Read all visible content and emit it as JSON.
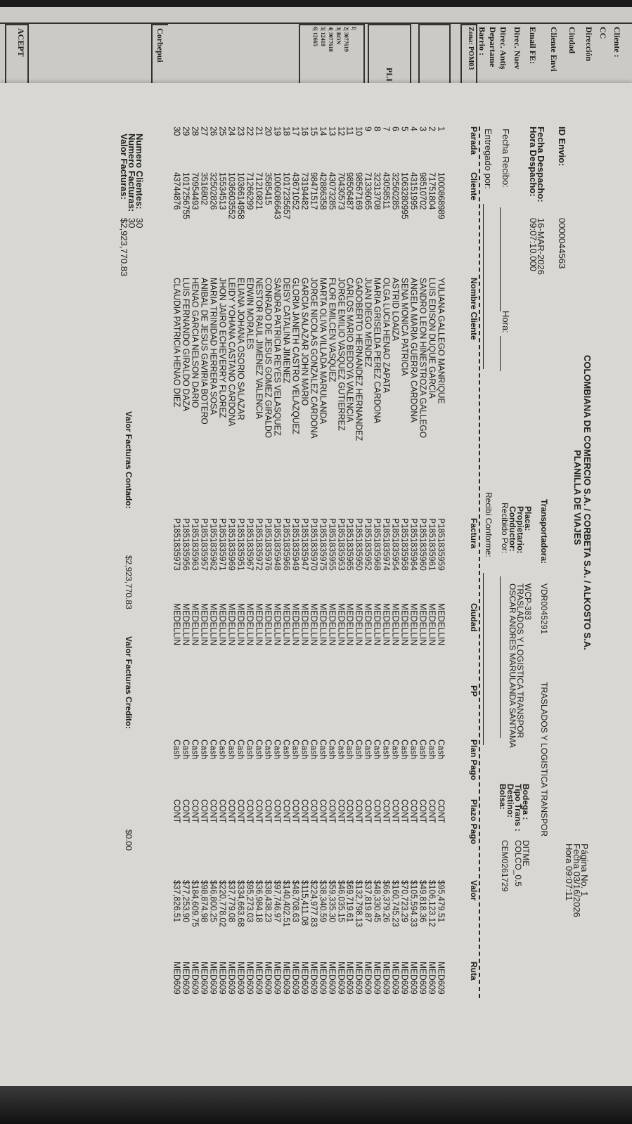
{
  "under_sheet": {
    "labels": [
      "Cliente :",
      "CC",
      "Dirección",
      "Ciudad",
      "Cliente Envi",
      "Email FE:",
      "Direc. Nuev",
      "Direc. Antiş",
      "Departame",
      "Barrio :",
      "Zona: POM03"
    ],
    "box_label": "PLI",
    "list": [
      "I|",
      "2| 3077619",
      "3| BON",
      "4| 3077618",
      "5| 12418",
      "6| 12665"
    ],
    "footer_label": "Corbepui",
    "accept_label": "ACEPT"
  },
  "header": {
    "title": "COLOMBIANA DE COMERCIO S.A. / CORBETA S.A. / ALKOSTO S.A.",
    "subtitle": "PLANILLA DE VIAJES",
    "page_label": "Página No.",
    "page_no": "1",
    "fecha_label": "Fecha",
    "fecha": "03/16/2026",
    "hora_label": "Hora",
    "hora": "09:07:11"
  },
  "info": {
    "id_envio_label": "ID Envio:",
    "id_envio": "0000044563",
    "fecha_despacho_label": "Fecha Despacho:",
    "fecha_despacho": "16-MAR-2026",
    "hora_despacho_label": "Hora Despacho:",
    "hora_despacho": "09:07:10.000",
    "transportadora_label": "Transportadora:",
    "transportadora_code": "VDR0045291",
    "transportadora_name": "TRASLADOS Y LOGISTICA TRANSPOR",
    "placa_label": "Placa:",
    "placa": "WCP-383",
    "propietario_label": "Propietario:",
    "propietario": "TRASLADOS Y LOGISTICA TRANSPOR",
    "conductor_label": "Conductor:",
    "conductor": "OSCAR ANDRES MARULANDA SANTAMA",
    "bodega_label": "Bodega :",
    "bodega": "DITME",
    "tipo_trans_label": "Tipo Trans :",
    "tipo_trans": "COLCO_0.5",
    "destino_label": "Destino:",
    "bolsa_label": "Bolsa:",
    "bolsa": "CEM0261729",
    "fecha_recibo_label": "Fecha Recibo:",
    "hora_label": "Hora:",
    "entregado_label": "Entregado por:",
    "recibido_label": "Recibido Por:",
    "conforme_label": "Recibi Conforme:"
  },
  "table": {
    "columns": [
      "Parada",
      "Cliente",
      "Nombre Cliente",
      "Factura",
      "Ciudad",
      "PP",
      "Plan Pago",
      "Plazo Pago",
      "Valor",
      "Ruta"
    ],
    "rows": [
      [
        "1",
        "1000868989",
        "YULIANA GALLEGO MANRIQUE",
        "P1851835959",
        "MEDELLIN",
        "",
        "Cash",
        "CONT",
        "$95,479.51",
        "MED609"
      ],
      [
        "2",
        "71751804",
        "LUIS EDISON DUQUE GARCIA",
        "P1851835961",
        "MEDELLIN",
        "",
        "Cash",
        "CONT",
        "$106,123.12",
        "MED609"
      ],
      [
        "3",
        "98510702",
        "SANDRO LEON HINESTROZA GALLEGO",
        "P1851835960",
        "MEDELLIN",
        "",
        "Cash",
        "CONT",
        "$49,818.36",
        "MED609"
      ],
      [
        "4",
        "43151995",
        "ANGELA MARIA GUERRA CARDONA",
        "P1851835964",
        "MEDELLIN",
        "",
        "Cash",
        "CONT",
        "$105,594.33",
        "MED609"
      ],
      [
        "5",
        "1063280995",
        "SENA MONICA PATRICIA",
        "P1851835958",
        "MEDELLIN",
        "",
        "Cash",
        "CONT",
        "$70,723.29",
        "MED609"
      ],
      [
        "6",
        "32560285",
        "ASTRID LOAIZA",
        "P1851835954",
        "MEDELLIN",
        "",
        "Cash",
        "CONT",
        "$160,745.23",
        "MED609"
      ],
      [
        "7",
        "43058511",
        "OLGA LUCIA HENAO ZAPATA",
        "P1851835974",
        "MEDELLIN",
        "",
        "Cash",
        "CONT",
        "$66,379.26",
        "MED609"
      ],
      [
        "8",
        "32313708",
        "MARIA GRISELDA PEREZ CARDONA",
        "P1851835968",
        "MEDELLIN",
        "",
        "Cash",
        "CONT",
        "$48,330.45",
        "MED609"
      ],
      [
        "9",
        "71336065",
        "JUAN DIEGO MENDEZ",
        "P1851835952",
        "MEDELLIN",
        "",
        "Cash",
        "CONT",
        "$37,819.87",
        "MED609"
      ],
      [
        "10",
        "98567169",
        "GADOBERTO HERNANDEZ HERNANDEZ",
        "P1851835950",
        "MEDELLIN",
        "",
        "Cash",
        "CONT",
        "$132,798.13",
        "MED609"
      ],
      [
        "11",
        "98506487",
        "CARLOS MARIO BEDOYA VALENCIA",
        "P1851835965",
        "MEDELLIN",
        "",
        "Cash",
        "CONT",
        "$69,719.61",
        "MED609"
      ],
      [
        "12",
        "70430573",
        "JORGE EMILIO VASQUEZ GUTIERREZ",
        "P1851835953",
        "MEDELLIN",
        "",
        "Cash",
        "CONT",
        "$46,035.15",
        "MED609"
      ],
      [
        "13",
        "43073285",
        "FLOR EMILCEN VASQUEZ",
        "P1851835955",
        "MEDELLIN",
        "",
        "Cash",
        "CONT",
        "$59,335.30",
        "MED609"
      ],
      [
        "14",
        "42886358",
        "MARTA OLIVA VILLADA MARULANDA",
        "P1851835975",
        "MEDELLIN",
        "",
        "Cash",
        "CONT",
        "$38,340.59",
        "MED609"
      ],
      [
        "15",
        "98471517",
        "JORGE NICOLAS GONZALEZ CARDONA",
        "P1851835970",
        "MEDELLIN",
        "",
        "Cash",
        "CONT",
        "$224,977.83",
        "MED609"
      ],
      [
        "16",
        "73194482",
        "GARCIA SALAZAR JOHN MARIO",
        "P1851835947",
        "MEDELLIN",
        "",
        "Cash",
        "CONT",
        "$115,411.08",
        "MED609"
      ],
      [
        "17",
        "43671052",
        "GLORIA JANETH CASTRO VELAZQUEZ",
        "P1851835949",
        "MEDELLIN",
        "",
        "Cash",
        "CONT",
        "$48,708.63",
        "MED609"
      ],
      [
        "18",
        "1017235657",
        "DEISY CATALINA JIMENEZ",
        "P1851835966",
        "MEDELLIN",
        "",
        "Cash",
        "CONT",
        "$140,402.51",
        "MED609"
      ],
      [
        "19",
        "1006086643",
        "SANDRA PATRICIA REYES VELASQUEZ",
        "P1851835948",
        "MEDELLIN",
        "",
        "Cash",
        "CONT",
        "$97,746.97",
        "MED609"
      ],
      [
        "20",
        "3585415",
        "CONRADO DE JESUS GOMEZ GIRALDO",
        "P1851835976",
        "MEDELLIN",
        "",
        "Cash",
        "CONT",
        "$38,438.23",
        "MED609"
      ],
      [
        "21",
        "71210821",
        "NESTOR RAUL JIMENEZ VALENCIA",
        "P1851835972",
        "MEDELLIN",
        "",
        "Cash",
        "CONT",
        "$36,984.18",
        "MED609"
      ],
      [
        "22",
        "71266299",
        "EDWIN MORALES",
        "P1851835967",
        "MEDELLIN",
        "",
        "Cash",
        "CONT",
        "$95,273.03",
        "MED609"
      ],
      [
        "23",
        "1036614958",
        "ELIANA JOHANA OSORIO SALAZAR",
        "P1851835951",
        "MEDELLIN",
        "",
        "Cash",
        "CONT",
        "$334,663.68",
        "MED609"
      ],
      [
        "24",
        "1036603552",
        "LEIDY YOHANA CASTANO CARDONA",
        "P1851835969",
        "MEDELLIN",
        "",
        "Cash",
        "CONT",
        "$37,779.08",
        "MED609"
      ],
      [
        "25",
        "15534513",
        "JHON JAIRO ECHEVERRY FLOREZ",
        "P1851835971",
        "MEDELLIN",
        "",
        "Cash",
        "CONT",
        "$220,778.02",
        "MED609"
      ],
      [
        "26",
        "32502826",
        "MARIA TRINIDAD HERRERA SOSA",
        "P1851835962",
        "MEDELLIN",
        "",
        "Cash",
        "CONT",
        "$46,800.25",
        "MED609"
      ],
      [
        "27",
        "3516802",
        "ANIBAL DE JESUS GAVIRIA BOTERO",
        "P1851835957",
        "MEDELLIN",
        "",
        "Cash",
        "CONT",
        "$98,874.98",
        "MED609"
      ],
      [
        "28",
        "70954493",
        "HENAO GARCIA NELSON DARIO",
        "P1851835963",
        "MEDELLIN",
        "",
        "Cash",
        "CONT",
        "$184,609.75",
        "MED609"
      ],
      [
        "29",
        "1017256755",
        "LUIS FERNANDO GIRALDO DAZA",
        "P1851835956",
        "MEDELLIN",
        "",
        "Cash",
        "CONT",
        "$77,253.90",
        "MED609"
      ],
      [
        "30",
        "43744876",
        "CLAUDIA PATRICIA HENAO DIEZ",
        "P1851835973",
        "MEDELLIN",
        "",
        "Cash",
        "CONT",
        "$37,826.51",
        "MED609"
      ]
    ]
  },
  "totals": {
    "clientes_label": "Numero Clientes:",
    "clientes": "30",
    "facturas_label": "Numero Facturas:",
    "facturas": "30",
    "valor_label": "Valor Facturas:",
    "valor": "$2,923,770.83",
    "contado_label": "Valor Facturas Contado:",
    "contado": "$2,923,770.83",
    "credito_label": "Valor Facturas Credito:",
    "credito": "$0.00"
  }
}
